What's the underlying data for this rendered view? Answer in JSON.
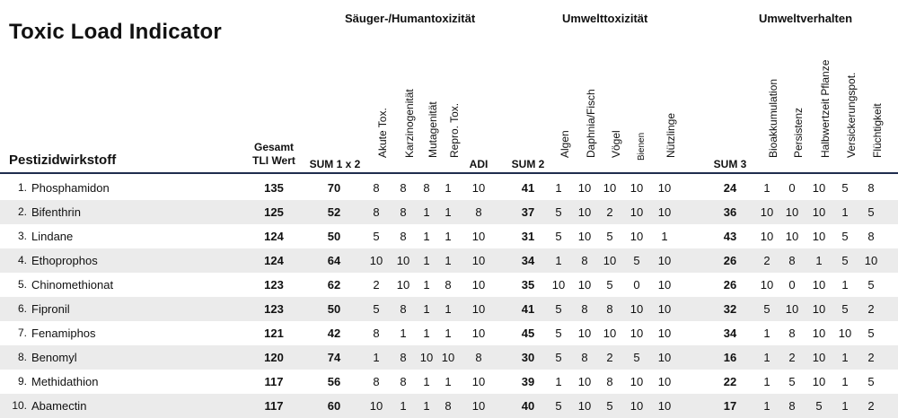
{
  "title": "Toxic Load Indicator",
  "groups": {
    "mammal": "Säuger-/Humantoxizität",
    "env_tox": "Umwelttoxizität",
    "env_behavior": "Umweltverhalten"
  },
  "headers": {
    "pestizid": "Pestizidwirkstoff",
    "tli_line1": "Gesamt",
    "tli_line2": "TLI Wert",
    "sum1": "SUM 1 x 2",
    "akut": "Akute Tox.",
    "karz": "Karzinogenität",
    "muta": "Mutagenität",
    "repro": "Repro. Tox.",
    "adi": "ADI",
    "sum2": "SUM 2",
    "algen": "Algen",
    "daphnia": "Daphnia/Fisch",
    "voegel": "Vögel",
    "bienen": "Bienen",
    "nuetz": "Nützlinge",
    "sum3": "SUM 3",
    "bioak": "Bioakkumulation",
    "pers": "Persistenz",
    "halb": "Halbwertzeit Pflanze",
    "versick": "Versickerungspot.",
    "fluecht": "Flüchtigkeit"
  },
  "rows": [
    {
      "rank": "1.",
      "name": "Phosphamidon",
      "tli": "135",
      "sum1": "70",
      "akut": "8",
      "karz": "8",
      "muta": "8",
      "repro": "1",
      "adi": "10",
      "sum2": "41",
      "algen": "1",
      "daphnia": "10",
      "voegel": "10",
      "bienen": "10",
      "nuetz": "10",
      "sum3": "24",
      "bioak": "1",
      "pers": "0",
      "halb": "10",
      "versick": "5",
      "fluecht": "8"
    },
    {
      "rank": "2.",
      "name": "Bifenthrin",
      "tli": "125",
      "sum1": "52",
      "akut": "8",
      "karz": "8",
      "muta": "1",
      "repro": "1",
      "adi": "8",
      "sum2": "37",
      "algen": "5",
      "daphnia": "10",
      "voegel": "2",
      "bienen": "10",
      "nuetz": "10",
      "sum3": "36",
      "bioak": "10",
      "pers": "10",
      "halb": "10",
      "versick": "1",
      "fluecht": "5"
    },
    {
      "rank": "3.",
      "name": "Lindane",
      "tli": "124",
      "sum1": "50",
      "akut": "5",
      "karz": "8",
      "muta": "1",
      "repro": "1",
      "adi": "10",
      "sum2": "31",
      "algen": "5",
      "daphnia": "10",
      "voegel": "5",
      "bienen": "10",
      "nuetz": "1",
      "sum3": "43",
      "bioak": "10",
      "pers": "10",
      "halb": "10",
      "versick": "5",
      "fluecht": "8"
    },
    {
      "rank": "4.",
      "name": "Ethoprophos",
      "tli": "124",
      "sum1": "64",
      "akut": "10",
      "karz": "10",
      "muta": "1",
      "repro": "1",
      "adi": "10",
      "sum2": "34",
      "algen": "1",
      "daphnia": "8",
      "voegel": "10",
      "bienen": "5",
      "nuetz": "10",
      "sum3": "26",
      "bioak": "2",
      "pers": "8",
      "halb": "1",
      "versick": "5",
      "fluecht": "10"
    },
    {
      "rank": "5.",
      "name": "Chinomethionat",
      "tli": "123",
      "sum1": "62",
      "akut": "2",
      "karz": "10",
      "muta": "1",
      "repro": "8",
      "adi": "10",
      "sum2": "35",
      "algen": "10",
      "daphnia": "10",
      "voegel": "5",
      "bienen": "0",
      "nuetz": "10",
      "sum3": "26",
      "bioak": "10",
      "pers": "0",
      "halb": "10",
      "versick": "1",
      "fluecht": "5"
    },
    {
      "rank": "6.",
      "name": "Fipronil",
      "tli": "123",
      "sum1": "50",
      "akut": "5",
      "karz": "8",
      "muta": "1",
      "repro": "1",
      "adi": "10",
      "sum2": "41",
      "algen": "5",
      "daphnia": "8",
      "voegel": "8",
      "bienen": "10",
      "nuetz": "10",
      "sum3": "32",
      "bioak": "5",
      "pers": "10",
      "halb": "10",
      "versick": "5",
      "fluecht": "2"
    },
    {
      "rank": "7.",
      "name": "Fenamiphos",
      "tli": "121",
      "sum1": "42",
      "akut": "8",
      "karz": "1",
      "muta": "1",
      "repro": "1",
      "adi": "10",
      "sum2": "45",
      "algen": "5",
      "daphnia": "10",
      "voegel": "10",
      "bienen": "10",
      "nuetz": "10",
      "sum3": "34",
      "bioak": "1",
      "pers": "8",
      "halb": "10",
      "versick": "10",
      "fluecht": "5"
    },
    {
      "rank": "8.",
      "name": "Benomyl",
      "tli": "120",
      "sum1": "74",
      "akut": "1",
      "karz": "8",
      "muta": "10",
      "repro": "10",
      "adi": "8",
      "sum2": "30",
      "algen": "5",
      "daphnia": "8",
      "voegel": "2",
      "bienen": "5",
      "nuetz": "10",
      "sum3": "16",
      "bioak": "1",
      "pers": "2",
      "halb": "10",
      "versick": "1",
      "fluecht": "2"
    },
    {
      "rank": "9.",
      "name": "Methidathion",
      "tli": "117",
      "sum1": "56",
      "akut": "8",
      "karz": "8",
      "muta": "1",
      "repro": "1",
      "adi": "10",
      "sum2": "39",
      "algen": "1",
      "daphnia": "10",
      "voegel": "8",
      "bienen": "10",
      "nuetz": "10",
      "sum3": "22",
      "bioak": "1",
      "pers": "5",
      "halb": "10",
      "versick": "1",
      "fluecht": "5"
    },
    {
      "rank": "10.",
      "name": "Abamectin",
      "tli": "117",
      "sum1": "60",
      "akut": "10",
      "karz": "1",
      "muta": "1",
      "repro": "8",
      "adi": "10",
      "sum2": "40",
      "algen": "5",
      "daphnia": "10",
      "voegel": "5",
      "bienen": "10",
      "nuetz": "10",
      "sum3": "17",
      "bioak": "1",
      "pers": "8",
      "halb": "5",
      "versick": "1",
      "fluecht": "2"
    }
  ]
}
